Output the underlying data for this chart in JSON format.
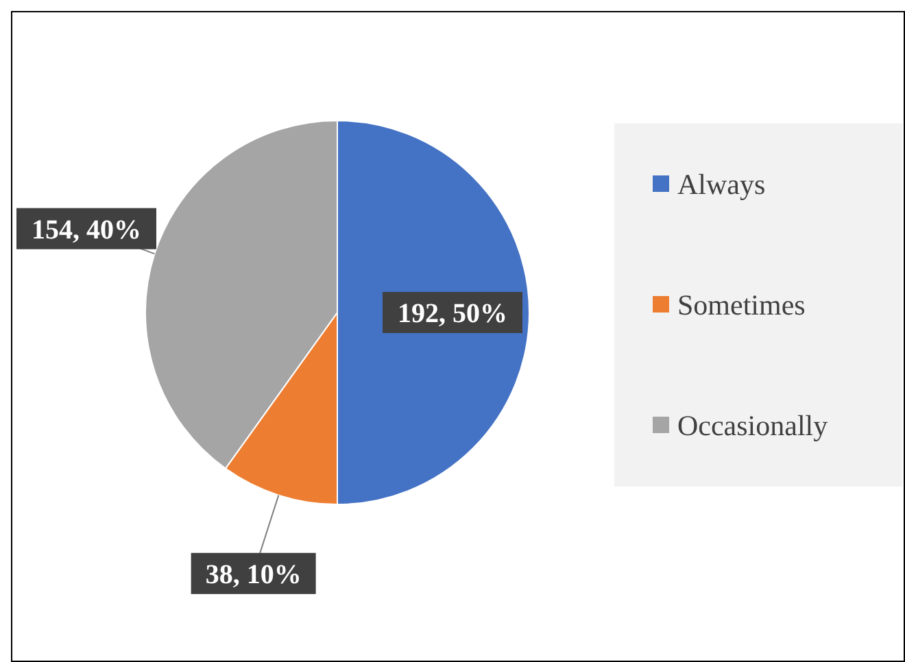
{
  "chart_data": {
    "type": "pie",
    "categories": [
      "Always",
      "Sometimes",
      "Occasionally"
    ],
    "values": [
      192,
      38,
      154
    ],
    "colors": [
      "#4472c4",
      "#ed7d31",
      "#a5a5a5"
    ],
    "value_labels": [
      "192, 50%",
      "38, 10%",
      "154, 40%"
    ],
    "legend": "right"
  }
}
